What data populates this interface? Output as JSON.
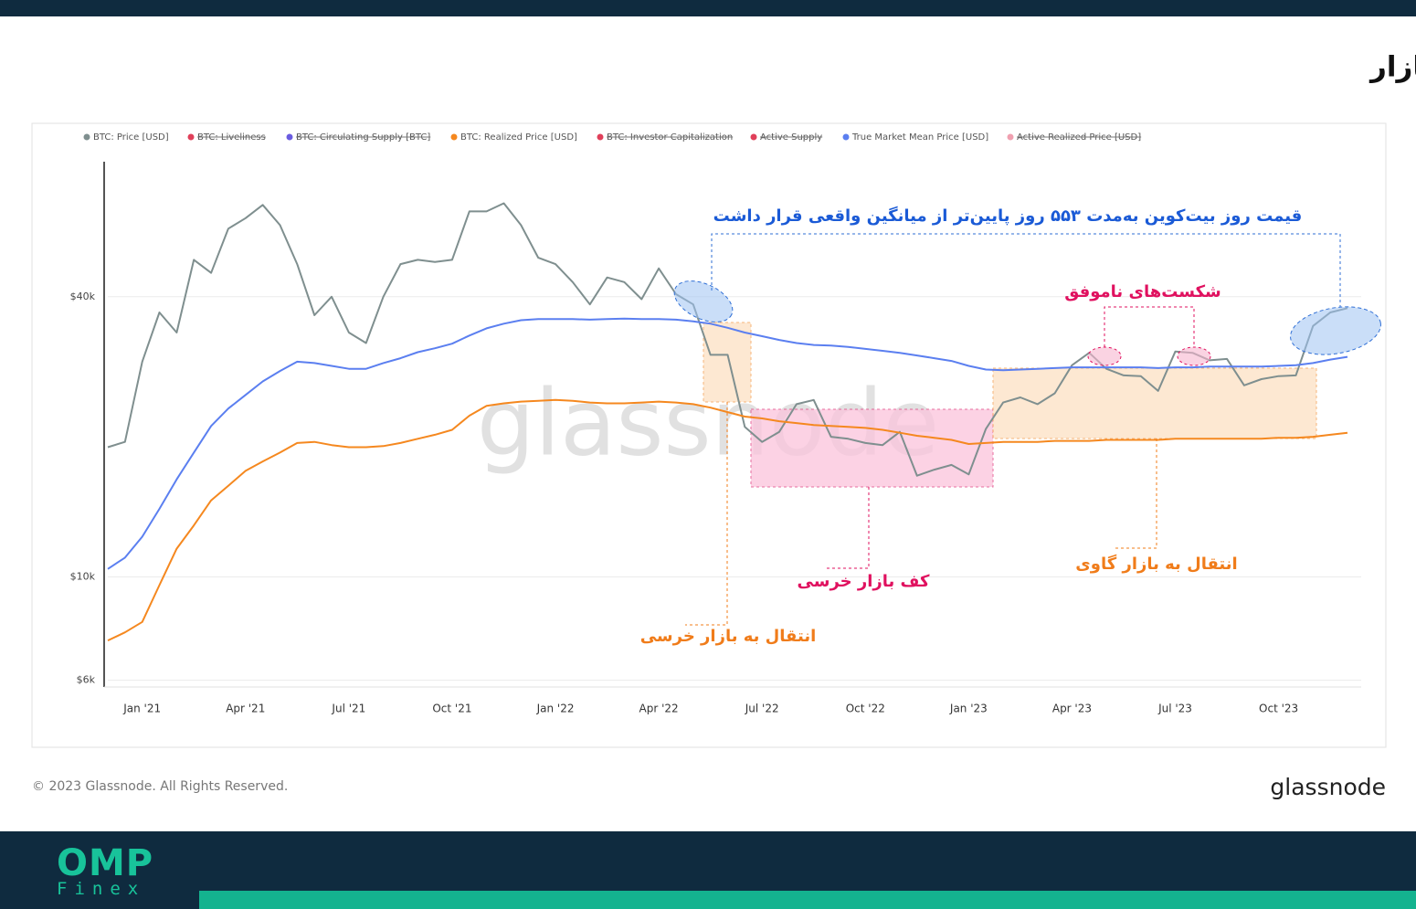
{
  "chart_data": {
    "type": "line",
    "title": "میانگین واقعی قیمت بازار",
    "annotations": [
      "قیمت روز بیت‌کوین به‌مدت ۵۵۳ روز پایین‌تر از میانگین واقعی قرار داشت",
      "شکست‌های ناموفق",
      "کف بازار خرسی",
      "انتقال به بازار خرسی",
      "انتقال به بازار گاوی"
    ],
    "categories": [
      null,
      null,
      "Jan '21",
      null,
      null,
      null,
      null,
      null,
      "Apr '21",
      null,
      null,
      null,
      null,
      null,
      "Jul '21",
      null,
      null,
      null,
      null,
      null,
      "Oct '21",
      null,
      null,
      null,
      null,
      null,
      "Jan '22",
      null,
      null,
      null,
      null,
      null,
      "Apr '22",
      null,
      null,
      null,
      null,
      null,
      "Jul '22",
      null,
      null,
      null,
      null,
      null,
      "Oct '22",
      null,
      null,
      null,
      null,
      null,
      "Jan '23",
      null,
      null,
      null,
      null,
      null,
      "Apr '23",
      null,
      null,
      null,
      null,
      null,
      "Jul '23",
      null,
      null,
      null,
      null,
      null,
      "Oct '23",
      null,
      null,
      null,
      null
    ],
    "series": [
      {
        "name": "BTC: Price [USD]",
        "color": "#7f8f8f",
        "values": [
          19000,
          19500,
          29000,
          37000,
          33500,
          48000,
          45000,
          56000,
          59000,
          63000,
          57000,
          47000,
          36500,
          40000,
          33500,
          31800,
          40000,
          47000,
          48000,
          47500,
          48000,
          61000,
          61000,
          63500,
          57000,
          48500,
          47000,
          43000,
          38500,
          44000,
          43000,
          39500,
          46000,
          40500,
          38500,
          30000,
          30000,
          21000,
          19500,
          20500,
          23500,
          24000,
          20000,
          19800,
          19400,
          19200,
          20500,
          16500,
          17000,
          17400,
          16600,
          20800,
          23700,
          24300,
          23500,
          24800,
          28500,
          30300,
          28000,
          27100,
          27000,
          25100,
          30500,
          30300,
          29200,
          29400,
          25800,
          26600,
          27000,
          27100,
          34600,
          37000,
          37800
        ]
      },
      {
        "name": "True Market Mean Price [USD]",
        "color": "#5b7ff0",
        "values": [
          10400,
          11000,
          12200,
          14000,
          16200,
          18500,
          21100,
          23000,
          24600,
          26300,
          27700,
          29000,
          28800,
          28400,
          28000,
          28000,
          28800,
          29500,
          30400,
          31000,
          31700,
          33000,
          34200,
          35000,
          35600,
          35800,
          35800,
          35800,
          35700,
          35800,
          35900,
          35800,
          35800,
          35700,
          35400,
          35000,
          34300,
          33500,
          32900,
          32300,
          31800,
          31500,
          31400,
          31200,
          30900,
          30600,
          30300,
          29900,
          29500,
          29100,
          28400,
          27900,
          27800,
          27900,
          28000,
          28100,
          28200,
          28200,
          28200,
          28200,
          28200,
          28100,
          28200,
          28200,
          28300,
          28300,
          28300,
          28300,
          28400,
          28500,
          28800,
          29300,
          29700
        ]
      },
      {
        "name": "BTC: Realized Price [USD]",
        "color": "#f5881f",
        "values": [
          7300,
          7600,
          8000,
          9600,
          11500,
          12900,
          14600,
          15700,
          16900,
          17700,
          18500,
          19400,
          19500,
          19200,
          19000,
          19000,
          19100,
          19400,
          19800,
          20200,
          20700,
          22200,
          23300,
          23600,
          23800,
          23900,
          24000,
          23900,
          23700,
          23600,
          23600,
          23700,
          23800,
          23700,
          23500,
          23100,
          22600,
          22100,
          21900,
          21600,
          21400,
          21200,
          21100,
          21000,
          20900,
          20700,
          20400,
          20100,
          19900,
          19700,
          19300,
          19400,
          19500,
          19500,
          19500,
          19600,
          19600,
          19600,
          19700,
          19700,
          19700,
          19700,
          19800,
          19800,
          19800,
          19800,
          19800,
          19800,
          19900,
          19900,
          20000,
          20200,
          20400
        ]
      }
    ],
    "legend": [
      {
        "name": "BTC: Price [USD]",
        "color": "#7f8f8f",
        "hidden": false
      },
      {
        "name": "BTC: Liveliness",
        "color": "#e0405a",
        "hidden": true
      },
      {
        "name": "BTC: Circulating Supply [BTC]",
        "color": "#6a5ce0",
        "hidden": true
      },
      {
        "name": "BTC: Realized Price [USD]",
        "color": "#f5881f",
        "hidden": false
      },
      {
        "name": "BTC: Investor Capitalization",
        "color": "#e0405a",
        "hidden": true
      },
      {
        "name": "Active Supply",
        "color": "#e0405a",
        "hidden": true
      },
      {
        "name": "True Market Mean Price [USD]",
        "color": "#5b7ff0",
        "hidden": false
      },
      {
        "name": "Active Realized Price [USD]",
        "color": "#f0a0b0",
        "hidden": true
      }
    ],
    "log_scale": true,
    "ylim": [
      5800,
      78000
    ],
    "yticks": [
      {
        "value": 6000,
        "label": "$6k"
      },
      {
        "value": 10000,
        "label": "$10k"
      },
      {
        "value": 40000,
        "label": "$40k"
      }
    ],
    "grid": true
  },
  "watermark": "glassnode",
  "footer": {
    "copyright": "© 2023 Glassnode. All Rights Reserved.",
    "brand": "glassnode"
  },
  "logo": {
    "main": "OMP",
    "sub": "Finex"
  }
}
